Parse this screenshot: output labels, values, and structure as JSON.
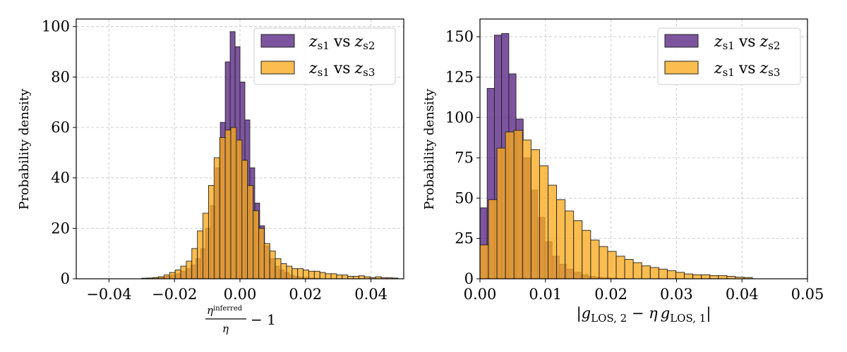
{
  "chart_data": [
    {
      "type": "histogram",
      "ylabel": "Probability density",
      "xlabel": {
        "numerator": "η",
        "numerator_sup": "inferred",
        "denominator": "η",
        "suffix": "− 1"
      },
      "xlim": [
        -0.05,
        0.05
      ],
      "ylim": [
        0,
        103
      ],
      "xticks": [
        -0.04,
        -0.02,
        0.0,
        0.02,
        0.04
      ],
      "xtick_labels": [
        "−0.04",
        "−0.02",
        "0.00",
        "0.02",
        "0.04"
      ],
      "yticks": [
        0,
        20,
        40,
        60,
        80,
        100
      ],
      "ytick_labels": [
        "0",
        "20",
        "40",
        "60",
        "80",
        "100"
      ],
      "grid": true,
      "legend_position": "top-right",
      "series": [
        {
          "name": "z_s1 vs z_s2",
          "legend": {
            "a": "z",
            "a_sub": "s1",
            "vs": "vs",
            "b": "z",
            "b_sub": "s2"
          },
          "color": "#5b2a86",
          "alpha": 0.8,
          "bin_edges": [
            -0.03,
            -0.0285,
            -0.027,
            -0.0255,
            -0.024,
            -0.0225,
            -0.021,
            -0.0195,
            -0.018,
            -0.0165,
            -0.015,
            -0.0135,
            -0.012,
            -0.0105,
            -0.009,
            -0.0075,
            -0.006,
            -0.0045,
            -0.003,
            -0.0015,
            0.0,
            0.0015,
            0.003,
            0.0045,
            0.006,
            0.0075,
            0.009,
            0.0105,
            0.012,
            0.0135,
            0.015,
            0.0165,
            0.018,
            0.0195,
            0.021,
            0.0225,
            0.024
          ],
          "values": [
            0.2,
            0.3,
            0.3,
            0.5,
            0.7,
            1,
            1.5,
            2,
            3,
            4,
            5.5,
            8,
            12,
            20,
            29,
            44,
            62,
            86,
            98,
            92,
            78,
            63,
            44,
            30,
            21,
            13,
            8,
            5,
            3.5,
            2.5,
            1.5,
            1,
            0.7,
            0.5,
            0.3,
            0.2
          ]
        },
        {
          "name": "z_s1 vs z_s3",
          "legend": {
            "a": "z",
            "a_sub": "s1",
            "vs": "vs",
            "b": "z",
            "b_sub": "s3"
          },
          "color": "#fbab1f",
          "alpha": 0.78,
          "bin_edges": [
            -0.03,
            -0.0283,
            -0.0266,
            -0.0249,
            -0.0232,
            -0.0215,
            -0.0198,
            -0.0181,
            -0.0164,
            -0.0147,
            -0.013,
            -0.0113,
            -0.0096,
            -0.0079,
            -0.0062,
            -0.0045,
            -0.0028,
            -0.0011,
            0.0006,
            0.0023,
            0.004,
            0.0057,
            0.0074,
            0.0091,
            0.0108,
            0.0125,
            0.0142,
            0.0159,
            0.0176,
            0.0193,
            0.021,
            0.0227,
            0.0244,
            0.0261,
            0.0278,
            0.0295,
            0.0312,
            0.0329,
            0.0346,
            0.0363,
            0.038,
            0.0397,
            0.0414,
            0.0431,
            0.0448,
            0.0465,
            0.0482
          ],
          "values": [
            0.2,
            0.3,
            0.5,
            0.8,
            1.5,
            2.5,
            3.5,
            5,
            7,
            12,
            19,
            26,
            37,
            48,
            56,
            59,
            60,
            55,
            47,
            37,
            27,
            20,
            14,
            11,
            8,
            6,
            5,
            4,
            4,
            3.5,
            3,
            3,
            2.5,
            2,
            2,
            1.5,
            1.5,
            1,
            1,
            1.2,
            0.8,
            0.5,
            0.8,
            0.4,
            0.4,
            0.3
          ]
        }
      ]
    },
    {
      "type": "histogram",
      "ylabel": "Probability density",
      "xlabel": {
        "text": "|g_LOS,2 − η g_LOS,1|",
        "g": "g",
        "sub2": "LOS, 2",
        "minus": " − ",
        "eta": "η",
        "sub1": "LOS, 1"
      },
      "xlim": [
        0,
        0.05
      ],
      "ylim": [
        0,
        161
      ],
      "xticks": [
        0.0,
        0.01,
        0.02,
        0.03,
        0.04,
        0.05
      ],
      "xtick_labels": [
        "0.00",
        "0.01",
        "0.02",
        "0.03",
        "0.04",
        "0.05"
      ],
      "yticks": [
        0,
        25,
        50,
        75,
        100,
        125,
        150
      ],
      "ytick_labels": [
        "0",
        "25",
        "50",
        "75",
        "100",
        "125",
        "150"
      ],
      "grid": true,
      "legend_position": "top-right",
      "series": [
        {
          "name": "z_s1 vs z_s2",
          "legend": {
            "a": "z",
            "a_sub": "s1",
            "vs": "vs",
            "b": "z",
            "b_sub": "s2"
          },
          "color": "#5b2a86",
          "alpha": 0.8,
          "bin_edges": [
            0.0,
            0.0011,
            0.0022,
            0.0033,
            0.0044,
            0.0055,
            0.0066,
            0.0077,
            0.0088,
            0.0099,
            0.011,
            0.0121,
            0.0132,
            0.0143,
            0.0154,
            0.0165,
            0.0176,
            0.0187,
            0.0198,
            0.0209,
            0.022,
            0.0231
          ],
          "values": [
            44,
            118,
            151,
            152,
            127,
            99,
            75,
            55,
            38,
            23,
            14,
            9,
            6,
            4,
            2.5,
            1.5,
            1,
            0.7,
            0.4,
            0.2,
            0.1
          ]
        },
        {
          "name": "z_s1 vs z_s3",
          "legend": {
            "a": "z",
            "a_sub": "s1",
            "vs": "vs",
            "b": "z",
            "b_sub": "s3"
          },
          "color": "#fbab1f",
          "alpha": 0.78,
          "bin_edges": [
            0.0,
            0.0013,
            0.0026,
            0.0039,
            0.0052,
            0.0065,
            0.0078,
            0.0091,
            0.0104,
            0.0117,
            0.013,
            0.0143,
            0.0156,
            0.0169,
            0.0182,
            0.0195,
            0.0208,
            0.0221,
            0.0234,
            0.0247,
            0.026,
            0.0273,
            0.0286,
            0.0299,
            0.0312,
            0.0325,
            0.0338,
            0.0351,
            0.0364,
            0.0377,
            0.039,
            0.0403,
            0.0416
          ],
          "values": [
            21,
            49,
            81,
            91,
            92,
            86,
            80,
            70,
            58,
            49,
            42,
            36,
            30,
            24,
            20,
            17,
            14,
            12,
            10,
            8,
            7,
            6,
            5,
            4,
            3,
            2.5,
            2.5,
            2,
            2,
            1.5,
            1,
            0.8
          ]
        }
      ]
    }
  ]
}
